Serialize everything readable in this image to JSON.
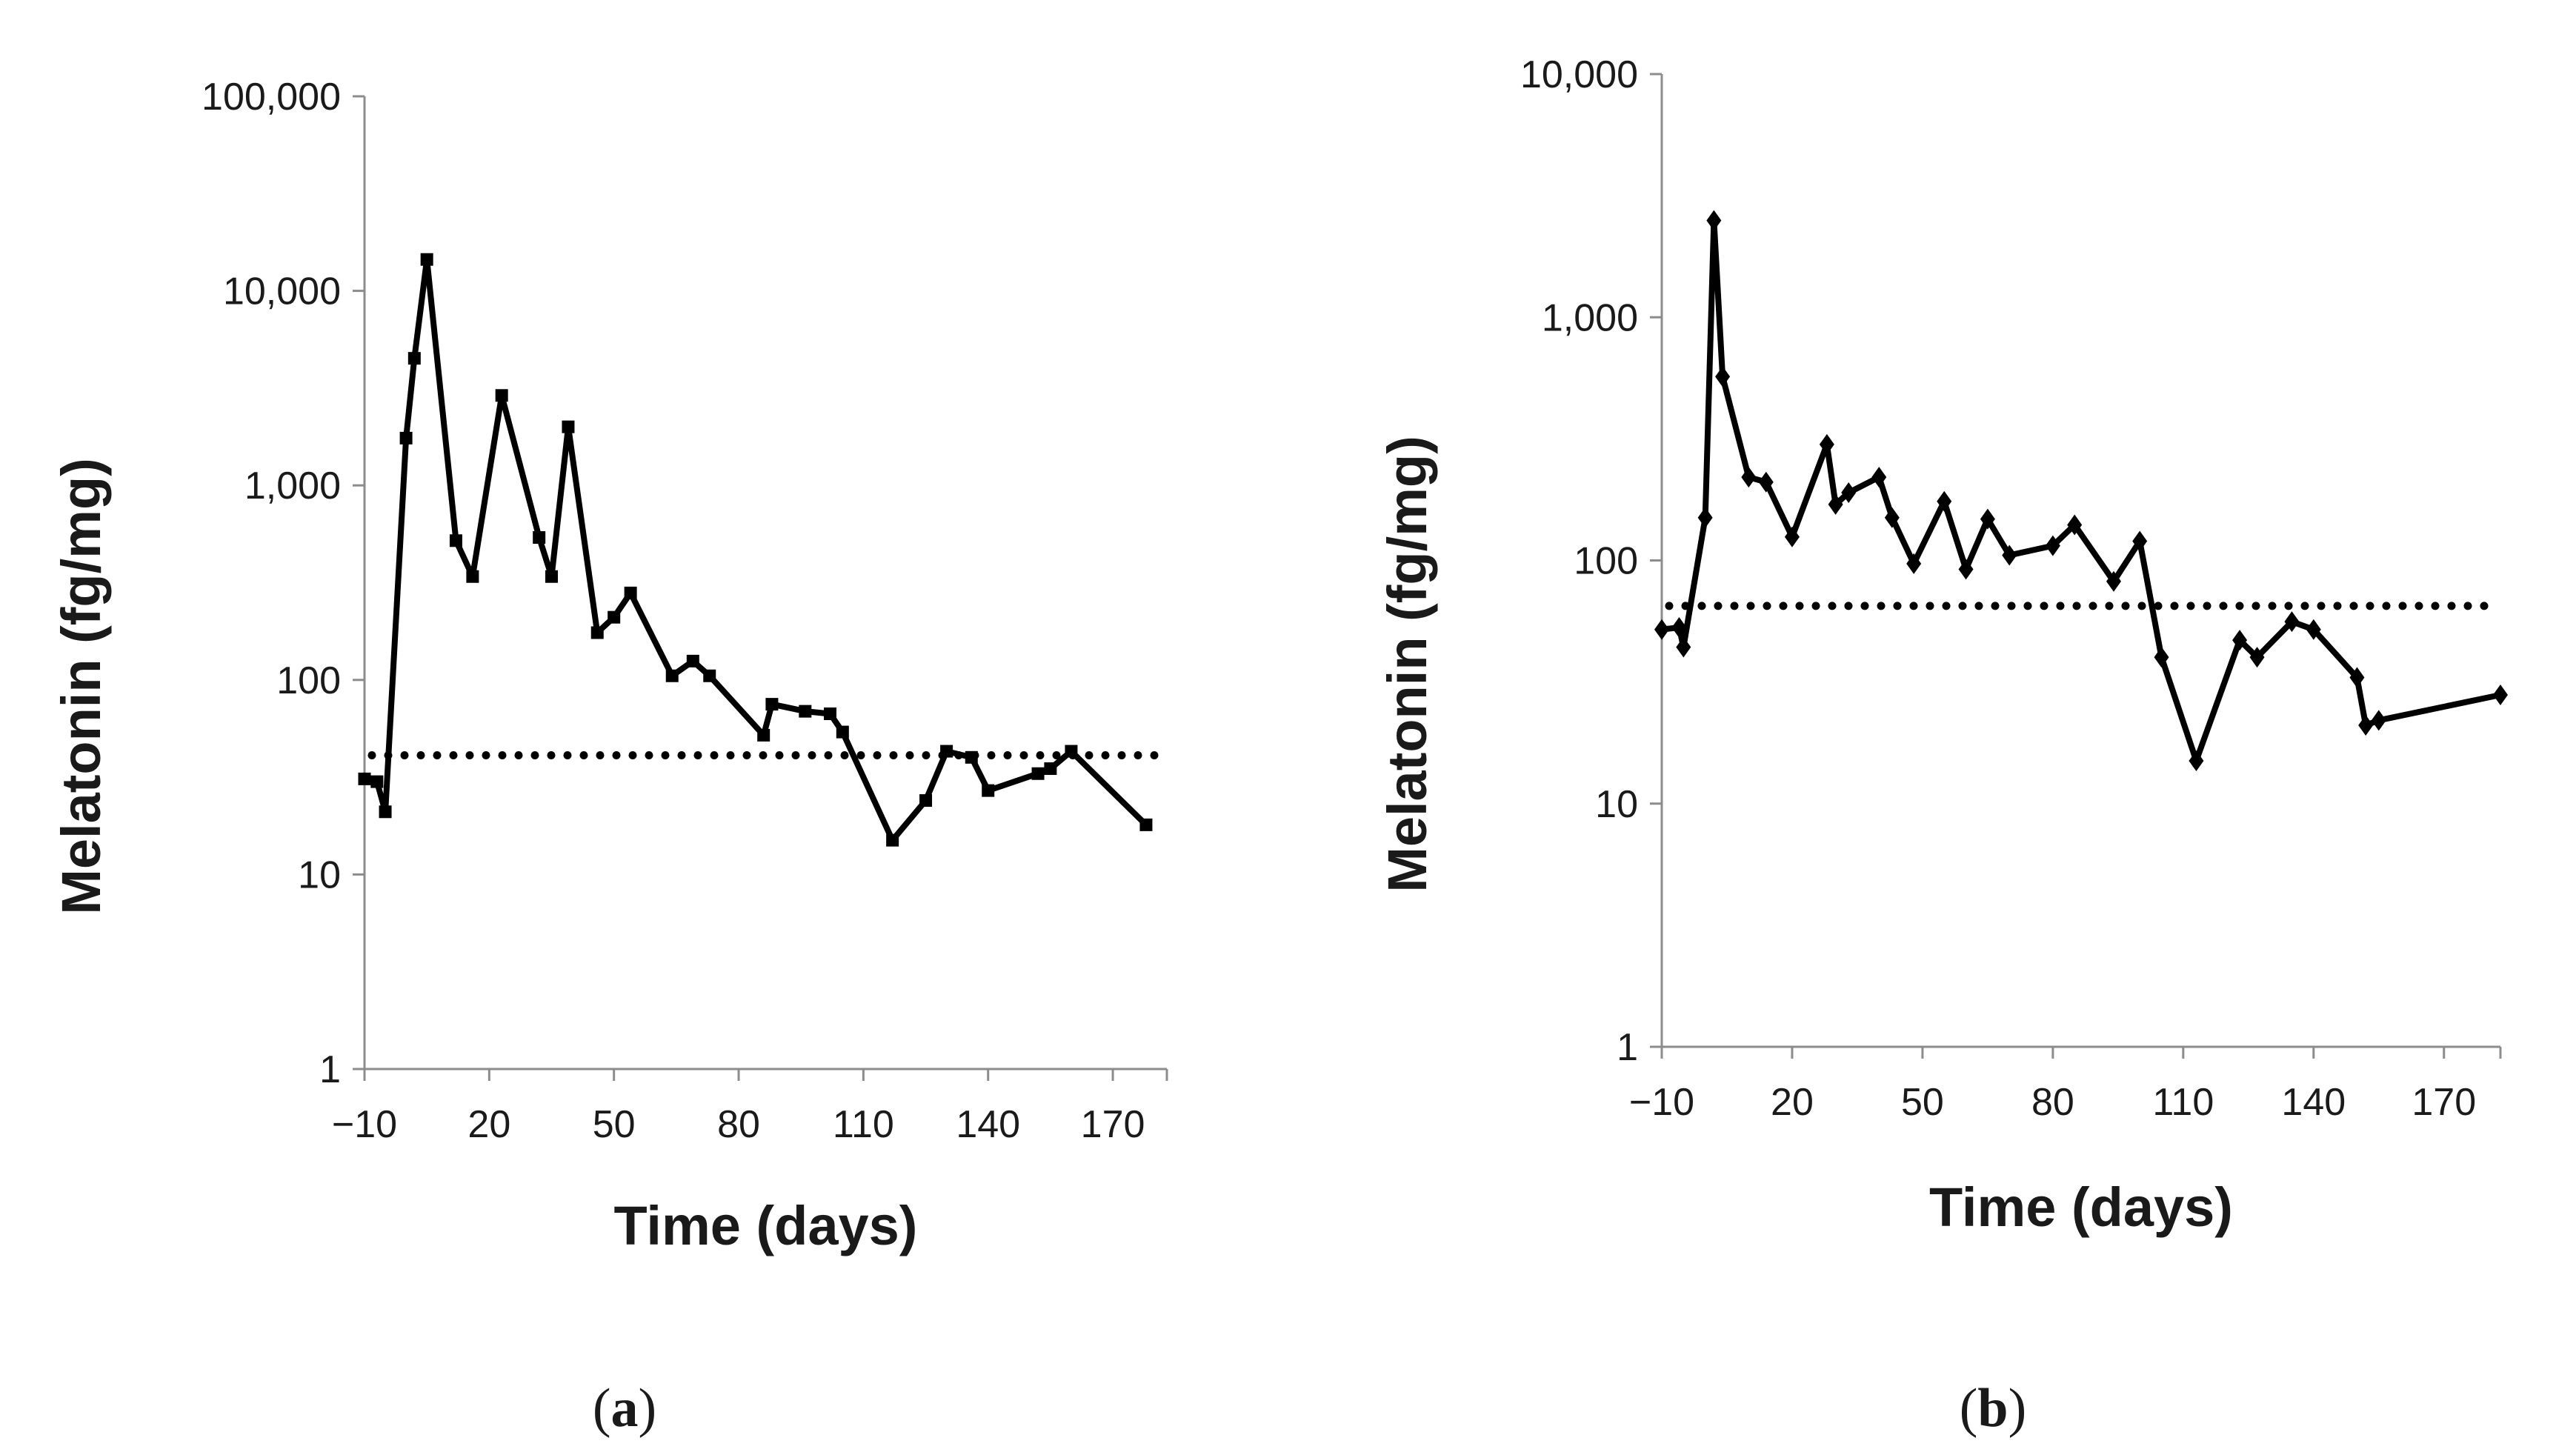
{
  "chart_data": [
    {
      "type": "line",
      "panel_label": "a",
      "caption_open": "(",
      "caption_close": ")",
      "xlabel": "Time (days)",
      "ylabel": "Melatonin (fg/mg)",
      "yscale": "log",
      "ylim": [
        1,
        100000
      ],
      "xlim": [
        -10,
        183
      ],
      "x_ticks": [
        -10,
        20,
        50,
        80,
        110,
        140,
        170
      ],
      "x_tick_labels": [
        "−10",
        "20",
        "50",
        "80",
        "110",
        "140",
        "170"
      ],
      "y_ticks": [
        1,
        10,
        100,
        1000,
        10000,
        100000
      ],
      "y_tick_labels": [
        "1",
        "10",
        "100",
        "1,000",
        "10,000",
        "100,000"
      ],
      "marker": "square",
      "threshold": 41,
      "series": [
        {
          "name": "melatonin",
          "x": [
            -10,
            -7,
            -5,
            0,
            2,
            5,
            12,
            16,
            23,
            32,
            35,
            39,
            46,
            50,
            54,
            64,
            69,
            73,
            86,
            88,
            96,
            102,
            105,
            117,
            125,
            130,
            136,
            140,
            152,
            155,
            160,
            178
          ],
          "y": [
            31,
            30,
            21,
            1750,
            4500,
            14500,
            520,
            340,
            2900,
            540,
            340,
            2000,
            175,
            210,
            280,
            105,
            125,
            105,
            52,
            75,
            69,
            67,
            54,
            15,
            24,
            43,
            40,
            27,
            33,
            35,
            43,
            18
          ]
        }
      ]
    },
    {
      "type": "line",
      "panel_label": "b",
      "caption_open": "(",
      "caption_close": ")",
      "xlabel": "Time (days)",
      "ylabel": "Melatonin (fg/mg)",
      "yscale": "log",
      "ylim": [
        1,
        10000
      ],
      "xlim": [
        -10,
        183
      ],
      "x_ticks": [
        -10,
        20,
        50,
        80,
        110,
        140,
        170
      ],
      "x_tick_labels": [
        "−10",
        "20",
        "50",
        "80",
        "110",
        "140",
        "170"
      ],
      "y_ticks": [
        1,
        10,
        100,
        1000,
        10000
      ],
      "y_tick_labels": [
        "1",
        "10",
        "100",
        "1,000",
        "10,000"
      ],
      "marker": "diamond",
      "threshold": 65,
      "series": [
        {
          "name": "melatonin",
          "x": [
            -10,
            -6,
            -5,
            0,
            2,
            4,
            10,
            14,
            20,
            28,
            30,
            33,
            40,
            43,
            48,
            55,
            60,
            65,
            70,
            80,
            85,
            94,
            100,
            105,
            113,
            123,
            127,
            135,
            140,
            150,
            152,
            155,
            183
          ],
          "y": [
            52,
            53,
            44,
            150,
            2500,
            570,
            220,
            210,
            125,
            300,
            170,
            190,
            220,
            150,
            97,
            175,
            92,
            148,
            105,
            115,
            140,
            82,
            120,
            40,
            15,
            47,
            40,
            56,
            52,
            33,
            21,
            22,
            28
          ]
        }
      ]
    }
  ]
}
